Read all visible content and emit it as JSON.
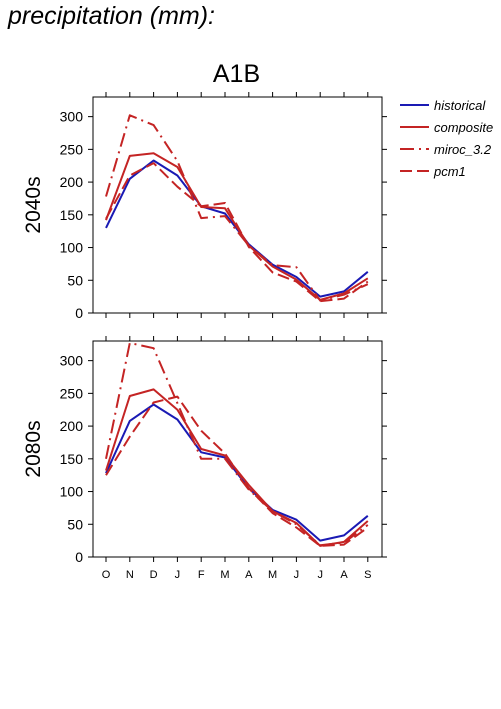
{
  "page_title": "precipitation (mm):",
  "colors": {
    "historical": "#1a1ab4",
    "projection": "#c42424",
    "axis": "#000000"
  },
  "chart_data": [
    {
      "type": "line",
      "title": "A1B",
      "ylabel": "2040s",
      "xlabel": "",
      "categories": [
        "O",
        "N",
        "D",
        "J",
        "F",
        "M",
        "A",
        "M",
        "J",
        "J",
        "A",
        "S"
      ],
      "ylim": [
        0,
        330
      ],
      "yticks": [
        0,
        50,
        100,
        150,
        200,
        250,
        300
      ],
      "grid": false,
      "legend": "right",
      "series": [
        {
          "name": "historical",
          "style": "solid",
          "color": "#1a1ab4",
          "values": [
            130,
            205,
            233,
            210,
            163,
            152,
            105,
            74,
            55,
            25,
            33,
            63
          ]
        },
        {
          "name": "composite",
          "style": "solid",
          "color": "#c42424",
          "values": [
            142,
            240,
            244,
            223,
            162,
            160,
            103,
            71,
            51,
            20,
            30,
            53
          ]
        },
        {
          "name": "miroc_3.2",
          "style": "dashdot",
          "color": "#c42424",
          "values": [
            178,
            302,
            287,
            232,
            145,
            148,
            103,
            73,
            70,
            19,
            28,
            44
          ]
        },
        {
          "name": "pcm1",
          "style": "dashed",
          "color": "#c42424",
          "values": [
            144,
            210,
            229,
            193,
            163,
            168,
            101,
            62,
            48,
            18,
            22,
            48
          ]
        }
      ]
    },
    {
      "type": "line",
      "title": "",
      "ylabel": "2080s",
      "xlabel": "",
      "categories": [
        "O",
        "N",
        "D",
        "J",
        "F",
        "M",
        "A",
        "M",
        "J",
        "J",
        "A",
        "S"
      ],
      "ylim": [
        0,
        330
      ],
      "yticks": [
        0,
        50,
        100,
        150,
        200,
        250,
        300
      ],
      "grid": false,
      "series": [
        {
          "name": "historical",
          "style": "solid",
          "color": "#1a1ab4",
          "values": [
            128,
            208,
            233,
            210,
            160,
            152,
            105,
            72,
            57,
            25,
            33,
            63
          ]
        },
        {
          "name": "composite",
          "style": "solid",
          "color": "#c42424",
          "values": [
            132,
            246,
            256,
            225,
            165,
            155,
            110,
            70,
            52,
            17,
            23,
            55
          ]
        },
        {
          "name": "miroc_3.2",
          "style": "dashdot",
          "color": "#c42424",
          "values": [
            150,
            327,
            319,
            235,
            150,
            150,
            103,
            70,
            50,
            18,
            22,
            49
          ]
        },
        {
          "name": "pcm1",
          "style": "dashed",
          "color": "#c42424",
          "values": [
            125,
            184,
            236,
            245,
            193,
            158,
            105,
            67,
            45,
            17,
            19,
            45
          ]
        }
      ]
    }
  ]
}
